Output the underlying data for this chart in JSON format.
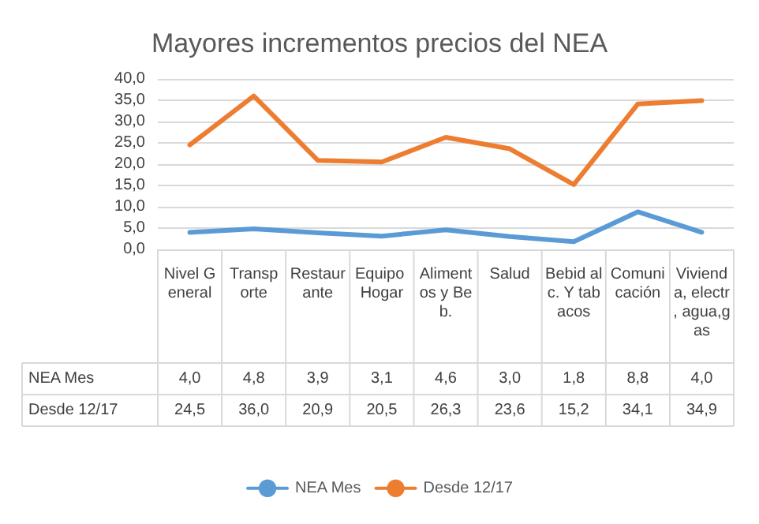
{
  "chart_data": {
    "type": "line",
    "title": "Mayores incrementos precios del NEA",
    "categories": [
      "Nivel General",
      "Transporte",
      "Restaurante",
      "Equipo Hogar",
      "Alimentos y Beb.",
      "Salud",
      "Bebid alc. Y tabacos",
      "Comunicación",
      "Vivienda, electr, agua,gas"
    ],
    "series": [
      {
        "name": "NEA Mes",
        "color": "#5b9bd5",
        "values": [
          4.0,
          4.8,
          3.9,
          3.1,
          4.6,
          3.0,
          1.8,
          8.8,
          4.0
        ],
        "value_labels": [
          "4,0",
          "4,8",
          "3,9",
          "3,1",
          "4,6",
          "3,0",
          "1,8",
          "8,8",
          "4,0"
        ]
      },
      {
        "name": "Desde 12/17",
        "color": "#ed7d31",
        "values": [
          24.5,
          36.0,
          20.9,
          20.5,
          26.3,
          23.6,
          15.2,
          34.1,
          34.9
        ],
        "value_labels": [
          "24,5",
          "36,0",
          "20,9",
          "20,5",
          "26,3",
          "23,6",
          "15,2",
          "34,1",
          "34,9"
        ]
      }
    ],
    "ylim": [
      0,
      40
    ],
    "yticks": [
      {
        "value": 0,
        "label": "0,0"
      },
      {
        "value": 5,
        "label": "5,0"
      },
      {
        "value": 10,
        "label": "10,0"
      },
      {
        "value": 15,
        "label": "15,0"
      },
      {
        "value": 20,
        "label": "20,0"
      },
      {
        "value": 25,
        "label": "25,0"
      },
      {
        "value": 30,
        "label": "30,0"
      },
      {
        "value": 35,
        "label": "35,0"
      },
      {
        "value": 40,
        "label": "40,0"
      }
    ],
    "grid": true,
    "legend": "bottom",
    "marker": "none",
    "line_style": "solid"
  }
}
